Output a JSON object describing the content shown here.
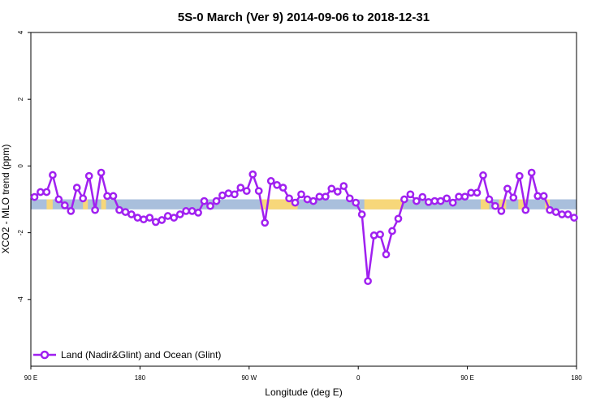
{
  "chart_data": {
    "type": "line",
    "title": "5S-0 March (Ver 9)   2014-09-06 to 2018-12-31",
    "xlabel": "Longitude (deg E)",
    "ylabel": "XCO2 - MLO trend (ppm)",
    "xlim": [
      90,
      540
    ],
    "ylim": [
      -6,
      4
    ],
    "x_ticks": [
      {
        "value": 90,
        "label": "90 E"
      },
      {
        "value": 180,
        "label": "180"
      },
      {
        "value": 270,
        "label": "90 W"
      },
      {
        "value": 360,
        "label": "0"
      },
      {
        "value": 450,
        "label": "90 E"
      },
      {
        "value": 540,
        "label": "180"
      }
    ],
    "y_ticks": [
      {
        "value": -4,
        "label": "-4"
      },
      {
        "value": -2,
        "label": "-2"
      },
      {
        "value": 0,
        "label": "0"
      },
      {
        "value": 2,
        "label": "2"
      },
      {
        "value": 4,
        "label": "4"
      }
    ],
    "band": {
      "ymin": -1.3,
      "ymax": -1.0,
      "ocean_color": "#a9bfdc",
      "land_color": "#f7d77a"
    },
    "land_segments": [
      [
        103,
        108
      ],
      [
        133,
        137
      ],
      [
        148,
        152
      ],
      [
        279,
        310
      ],
      [
        365,
        397
      ],
      [
        461,
        468
      ],
      [
        476,
        482
      ],
      [
        492,
        498
      ],
      [
        514,
        518
      ]
    ],
    "series": [
      {
        "name": "Land (Nadir&Glint) and Ocean (Glint)",
        "color": "#a020f0",
        "x": [
          93,
          98,
          103,
          108,
          113,
          118,
          123,
          128,
          133,
          138,
          143,
          148,
          153,
          158,
          163,
          168,
          173,
          178,
          183,
          188,
          193,
          198,
          203,
          208,
          213,
          218,
          223,
          228,
          233,
          238,
          243,
          248,
          253,
          258,
          263,
          268,
          273,
          278,
          283,
          288,
          293,
          298,
          303,
          308,
          313,
          318,
          323,
          328,
          333,
          338,
          343,
          348,
          353,
          358,
          363,
          368,
          373,
          378,
          383,
          388,
          393,
          398,
          403,
          408,
          413,
          418,
          423,
          428,
          433,
          438,
          443,
          448,
          453,
          458,
          463,
          468,
          473,
          478,
          483,
          488,
          493,
          498,
          503,
          508,
          513,
          518,
          523,
          528,
          533,
          538
        ],
        "y": [
          -0.93,
          -0.78,
          -0.78,
          -0.27,
          -1.0,
          -1.18,
          -1.35,
          -0.65,
          -0.97,
          -0.3,
          -1.32,
          -0.2,
          -0.9,
          -0.9,
          -1.32,
          -1.38,
          -1.45,
          -1.55,
          -1.6,
          -1.55,
          -1.68,
          -1.62,
          -1.5,
          -1.55,
          -1.45,
          -1.35,
          -1.35,
          -1.4,
          -1.05,
          -1.2,
          -1.05,
          -0.88,
          -0.82,
          -0.85,
          -0.65,
          -0.75,
          -0.25,
          -0.75,
          -1.7,
          -0.45,
          -0.57,
          -0.65,
          -0.97,
          -1.1,
          -0.85,
          -1.0,
          -1.05,
          -0.92,
          -0.92,
          -0.68,
          -0.77,
          -0.6,
          -0.97,
          -1.1,
          -1.45,
          -3.45,
          -2.08,
          -2.05,
          -2.65,
          -1.95,
          -1.58,
          -1.0,
          -0.85,
          -1.05,
          -0.93,
          -1.08,
          -1.05,
          -1.05,
          -0.97,
          -1.1,
          -0.92,
          -0.92,
          -0.8,
          -0.8,
          -0.28,
          -1.0,
          -1.2,
          -1.35,
          -0.68,
          -0.95,
          -0.3,
          -1.32,
          -0.2,
          -0.9,
          -0.9,
          -1.32,
          -1.38,
          -1.45,
          -1.45,
          -1.55
        ]
      }
    ],
    "legend": {
      "position": "bottom-left",
      "label": "Land (Nadir&Glint) and Ocean (Glint)"
    }
  }
}
